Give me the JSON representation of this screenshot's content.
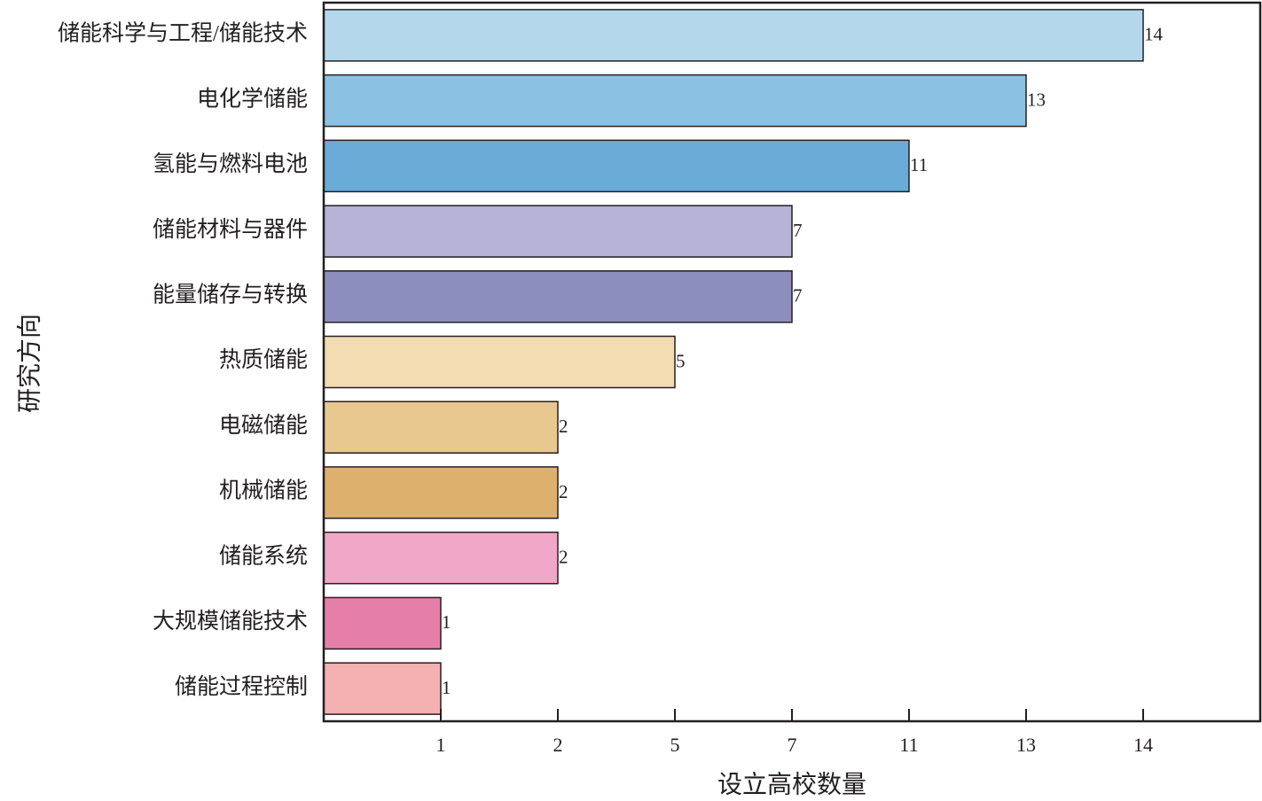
{
  "chart_data": {
    "type": "bar",
    "orientation": "horizontal",
    "x_label": "设立高校数量",
    "y_label": "研究方向",
    "categories": [
      "储能科学与工程/储能技术",
      "电化学储能",
      "氢能与燃料电池",
      "储能材料与器件",
      "能量储存与转换",
      "热质储能",
      "电磁储能",
      "机械储能",
      "储能系统",
      "大规模储能技术",
      "储能过程控制"
    ],
    "values": [
      14,
      13,
      11,
      7,
      7,
      5,
      2,
      2,
      2,
      1,
      1
    ],
    "colors": [
      "#b4d7eb",
      "#8bc1e2",
      "#6aabd7",
      "#b6b3d6",
      "#8c8fbd",
      "#f3dbb2",
      "#e9c88f",
      "#deb06d",
      "#f0a7c8",
      "#e57faa",
      "#f5b0b2"
    ],
    "xlim": [
      0,
      15
    ],
    "xticks": [
      1,
      2,
      5,
      7,
      11,
      13,
      14
    ],
    "x_scale": "ordinal-ticks"
  }
}
